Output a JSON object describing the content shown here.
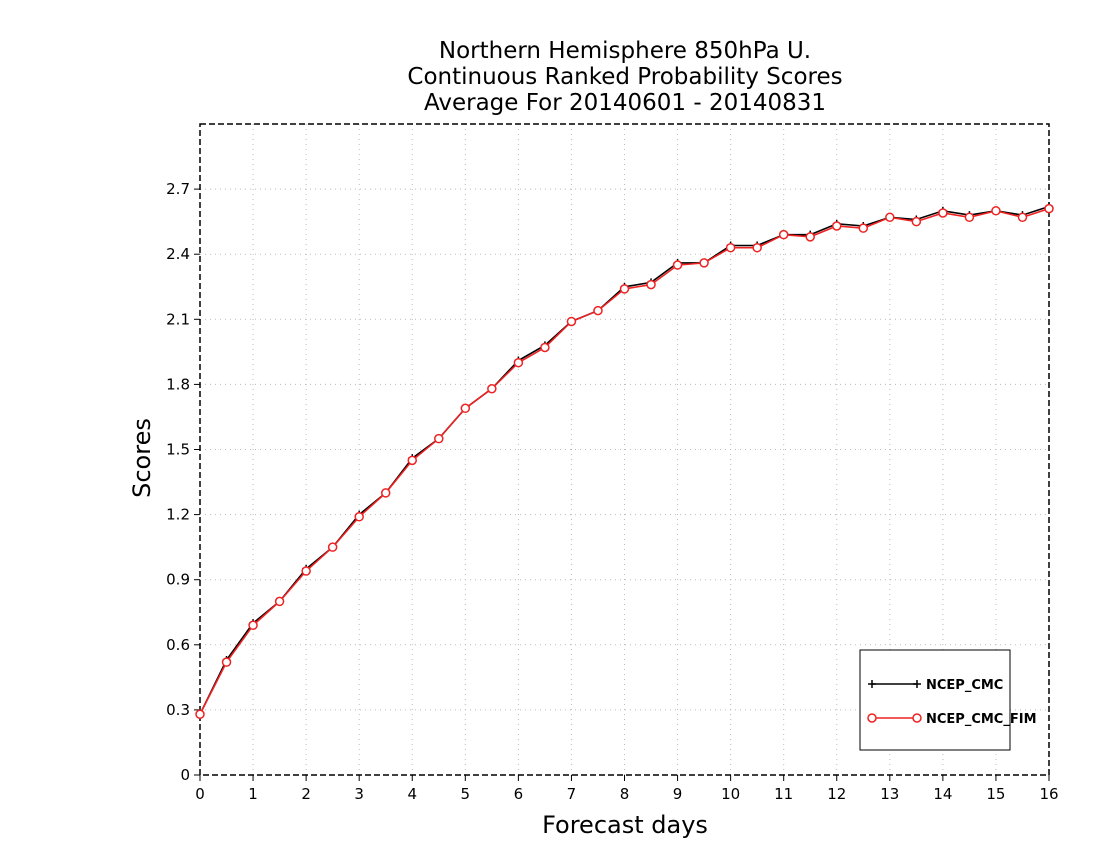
{
  "chart_data": {
    "type": "line",
    "title_lines": [
      "Northern Hemisphere 850hPa U.",
      "Continuous Ranked Probability Scores",
      "Average For 20140601 - 20140831"
    ],
    "xlabel": "Forecast days",
    "ylabel": "Scores",
    "xlim": [
      0,
      16
    ],
    "ylim": [
      0,
      3.0
    ],
    "x_ticks": [
      "0",
      "1",
      "2",
      "3",
      "4",
      "5",
      "6",
      "7",
      "8",
      "9",
      "10",
      "11",
      "12",
      "13",
      "14",
      "15",
      "16"
    ],
    "y_ticks": [
      "0",
      "0.3",
      "0.6",
      "0.9",
      "1.2",
      "1.5",
      "1.8",
      "2.1",
      "2.4",
      "2.7"
    ],
    "grid": true,
    "legend_position": "bottom-right",
    "x": [
      0,
      0.5,
      1,
      1.5,
      2,
      2.5,
      3,
      3.5,
      4,
      4.5,
      5,
      5.5,
      6,
      6.5,
      7,
      7.5,
      8,
      8.5,
      9,
      9.5,
      10,
      10.5,
      11,
      11.5,
      12,
      12.5,
      13,
      13.5,
      14,
      14.5,
      15,
      15.5,
      16
    ],
    "series": [
      {
        "name": "NCEP_CMC",
        "color": "#000000",
        "marker": "plus",
        "values": [
          0.28,
          0.53,
          0.7,
          0.8,
          0.95,
          1.05,
          1.2,
          1.3,
          1.46,
          1.55,
          1.69,
          1.78,
          1.91,
          1.98,
          2.09,
          2.14,
          2.25,
          2.27,
          2.36,
          2.36,
          2.44,
          2.44,
          2.49,
          2.49,
          2.54,
          2.53,
          2.57,
          2.56,
          2.6,
          2.58,
          2.6,
          2.58,
          2.62
        ]
      },
      {
        "name": "NCEP_CMC_FIM",
        "color": "#ee2222",
        "marker": "circle",
        "values": [
          0.28,
          0.52,
          0.69,
          0.8,
          0.94,
          1.05,
          1.19,
          1.3,
          1.45,
          1.55,
          1.69,
          1.78,
          1.9,
          1.97,
          2.09,
          2.14,
          2.24,
          2.26,
          2.35,
          2.36,
          2.43,
          2.43,
          2.49,
          2.48,
          2.53,
          2.52,
          2.57,
          2.55,
          2.59,
          2.57,
          2.6,
          2.57,
          2.61
        ]
      }
    ]
  }
}
